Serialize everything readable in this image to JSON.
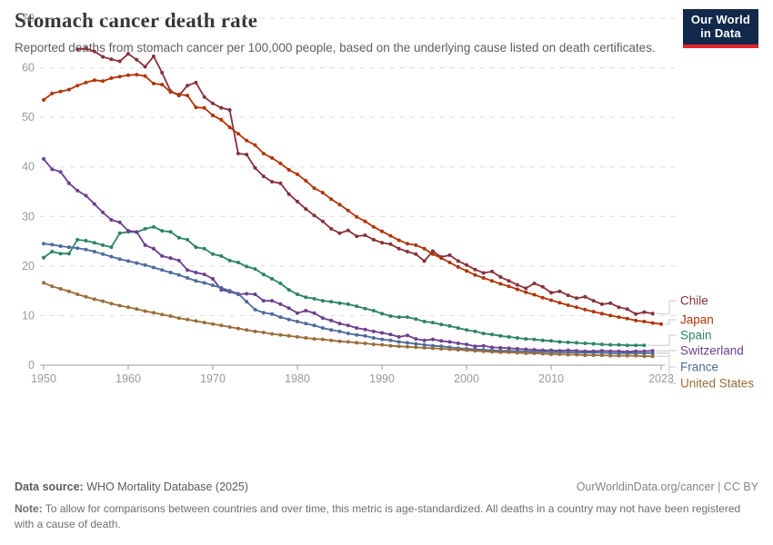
{
  "header": {
    "title": "Stomach cancer death rate",
    "subtitle": "Reported deaths from stomach cancer per 100,000 people, based on the underlying cause listed on death certificates.",
    "logo": {
      "line1": "Our World",
      "line2": "in Data",
      "bg_color": "#12294B",
      "accent_color": "#E0262D"
    }
  },
  "footer": {
    "source_label": "Data source:",
    "source_text": " WHO Mortality Database (2025)",
    "link_text": "OurWorldinData.org/cancer | CC BY",
    "note_label": "Note:",
    "note_text": " To allow for comparisons between countries and over time, this metric is age-standardized. All deaths in a country may not have been registered with a cause of death."
  },
  "chart_data": {
    "type": "line",
    "title": "Stomach cancer death rate",
    "xlabel": "",
    "ylabel": "",
    "xlim": [
      1950,
      2023
    ],
    "ylim": [
      0,
      70
    ],
    "x_ticks": [
      1950,
      1960,
      1970,
      1980,
      1990,
      2000,
      2010,
      2023
    ],
    "y_ticks": [
      0,
      10,
      20,
      30,
      40,
      50,
      60,
      70
    ],
    "grid": "horizontal-dashed",
    "legend_position": "right-of-line-ends",
    "axis_color": "#9e9e9e",
    "grid_color": "#dcdcdc",
    "tick_label_color": "#999999",
    "connector_color": "#c8c8c8",
    "series": [
      {
        "name": "Chile",
        "color": "#883039",
        "start_year": 1954,
        "values": [
          63.7,
          63.9,
          63.3,
          62.2,
          61.7,
          61.3,
          62.8,
          61.6,
          60.2,
          62.3,
          59.0,
          55.3,
          54.4,
          56.4,
          57.0,
          54.1,
          52.8,
          51.9,
          51.5,
          42.7,
          42.5,
          39.8,
          38.1,
          37.0,
          36.7,
          34.5,
          33.0,
          31.5,
          30.2,
          29.0,
          27.5,
          26.6,
          27.2,
          26.0,
          26.2,
          25.3,
          24.7,
          24.4,
          23.5,
          22.9,
          22.4,
          21.0,
          23.0,
          21.8,
          22.2,
          21.0,
          20.2,
          19.3,
          18.6,
          18.9,
          17.8,
          17.0,
          16.2,
          15.5,
          16.5,
          15.8,
          14.6,
          14.9,
          14.1,
          13.5,
          13.8,
          13.0,
          12.3,
          12.5,
          11.7,
          11.3,
          10.3,
          10.7,
          10.4
        ]
      },
      {
        "name": "Japan",
        "color": "#B13507",
        "start_year": 1950,
        "values": [
          53.5,
          54.8,
          55.2,
          55.6,
          56.4,
          57.0,
          57.5,
          57.3,
          57.9,
          58.2,
          58.5,
          58.6,
          58.3,
          56.8,
          56.6,
          55.1,
          54.6,
          54.4,
          52.0,
          51.9,
          50.4,
          49.5,
          48.0,
          46.7,
          45.3,
          44.4,
          42.7,
          41.8,
          40.7,
          39.4,
          38.5,
          37.2,
          35.7,
          34.8,
          33.5,
          32.4,
          31.2,
          29.9,
          29.0,
          27.9,
          27.0,
          26.1,
          25.2,
          24.5,
          24.2,
          23.5,
          22.4,
          21.6,
          20.7,
          19.8,
          19.0,
          18.2,
          17.6,
          17.0,
          16.4,
          15.9,
          15.3,
          14.7,
          14.2,
          13.6,
          13.1,
          12.6,
          12.1,
          11.7,
          11.2,
          10.8,
          10.4,
          10.0,
          9.7,
          9.4,
          9.0,
          8.8,
          8.5,
          8.3
        ]
      },
      {
        "name": "Spain",
        "color": "#2C8465",
        "start_year": 1950,
        "values": [
          21.7,
          22.9,
          22.5,
          22.5,
          25.3,
          25.1,
          24.7,
          24.2,
          23.8,
          26.6,
          26.9,
          26.8,
          27.5,
          27.9,
          27.1,
          26.9,
          25.7,
          25.3,
          23.8,
          23.5,
          22.4,
          22.0,
          21.1,
          20.7,
          19.9,
          19.4,
          18.3,
          17.4,
          16.5,
          15.2,
          14.3,
          13.7,
          13.4,
          13.0,
          12.8,
          12.5,
          12.3,
          11.9,
          11.4,
          11.0,
          10.4,
          9.9,
          9.7,
          9.7,
          9.3,
          8.8,
          8.6,
          8.2,
          7.9,
          7.5,
          7.1,
          6.8,
          6.4,
          6.2,
          5.9,
          5.7,
          5.5,
          5.3,
          5.2,
          5.0,
          4.9,
          4.7,
          4.6,
          4.5,
          4.4,
          4.3,
          4.2,
          4.1,
          4.1,
          4.0,
          4.0,
          4.0
        ]
      },
      {
        "name": "Switzerland",
        "color": "#6D3E91",
        "start_year": 1950,
        "values": [
          41.6,
          39.5,
          39.0,
          36.7,
          35.2,
          34.2,
          32.5,
          30.8,
          29.3,
          28.8,
          27.1,
          26.9,
          24.2,
          23.5,
          22.0,
          21.6,
          21.1,
          19.2,
          18.7,
          18.3,
          17.4,
          15.2,
          14.8,
          14.3,
          14.4,
          14.3,
          13.0,
          13.0,
          12.3,
          11.5,
          10.5,
          11.0,
          10.5,
          9.5,
          9.0,
          8.4,
          8.0,
          7.5,
          7.2,
          6.8,
          6.5,
          6.2,
          5.7,
          6.0,
          5.3,
          5.0,
          5.2,
          4.9,
          4.7,
          4.4,
          4.2,
          3.8,
          3.9,
          3.6,
          3.5,
          3.4,
          3.3,
          3.2,
          3.1,
          3.0,
          3.0,
          2.9,
          3.0,
          2.9,
          2.8,
          2.8,
          2.9,
          2.8,
          2.8,
          2.7,
          2.8,
          2.8,
          2.9
        ]
      },
      {
        "name": "France",
        "color": "#4C6A9C",
        "start_year": 1950,
        "values": [
          24.5,
          24.3,
          24.0,
          23.8,
          23.6,
          23.3,
          22.9,
          22.4,
          21.9,
          21.4,
          21.0,
          20.6,
          20.2,
          19.7,
          19.2,
          18.7,
          18.2,
          17.6,
          17.0,
          16.6,
          16.1,
          15.6,
          15.0,
          14.4,
          12.8,
          11.2,
          10.6,
          10.3,
          9.7,
          9.2,
          8.8,
          8.4,
          8.0,
          7.5,
          7.1,
          6.8,
          6.4,
          6.1,
          5.9,
          5.5,
          5.2,
          5.0,
          4.7,
          4.5,
          4.3,
          4.1,
          3.9,
          3.8,
          3.6,
          3.4,
          3.3,
          3.2,
          3.1,
          3.0,
          2.9,
          2.9,
          2.8,
          2.8,
          2.7,
          2.7,
          2.6,
          2.6,
          2.6,
          2.5,
          2.5,
          2.5,
          2.5,
          2.4,
          2.4,
          2.4,
          2.4,
          2.4,
          2.4
        ]
      },
      {
        "name": "United States",
        "color": "#996D39",
        "start_year": 1950,
        "values": [
          16.6,
          15.9,
          15.4,
          14.9,
          14.3,
          13.8,
          13.3,
          12.9,
          12.4,
          12.0,
          11.7,
          11.3,
          10.9,
          10.6,
          10.2,
          9.9,
          9.5,
          9.2,
          8.9,
          8.6,
          8.3,
          8.0,
          7.7,
          7.4,
          7.1,
          6.8,
          6.6,
          6.3,
          6.1,
          5.9,
          5.7,
          5.5,
          5.3,
          5.2,
          5.0,
          4.8,
          4.7,
          4.5,
          4.4,
          4.2,
          4.1,
          3.9,
          3.8,
          3.7,
          3.6,
          3.5,
          3.4,
          3.3,
          3.2,
          3.1,
          3.0,
          2.9,
          2.8,
          2.7,
          2.6,
          2.6,
          2.5,
          2.4,
          2.4,
          2.3,
          2.2,
          2.2,
          2.1,
          2.1,
          2.0,
          2.0,
          2.0,
          1.9,
          1.9,
          1.9,
          1.9,
          1.8,
          1.8
        ]
      }
    ]
  }
}
